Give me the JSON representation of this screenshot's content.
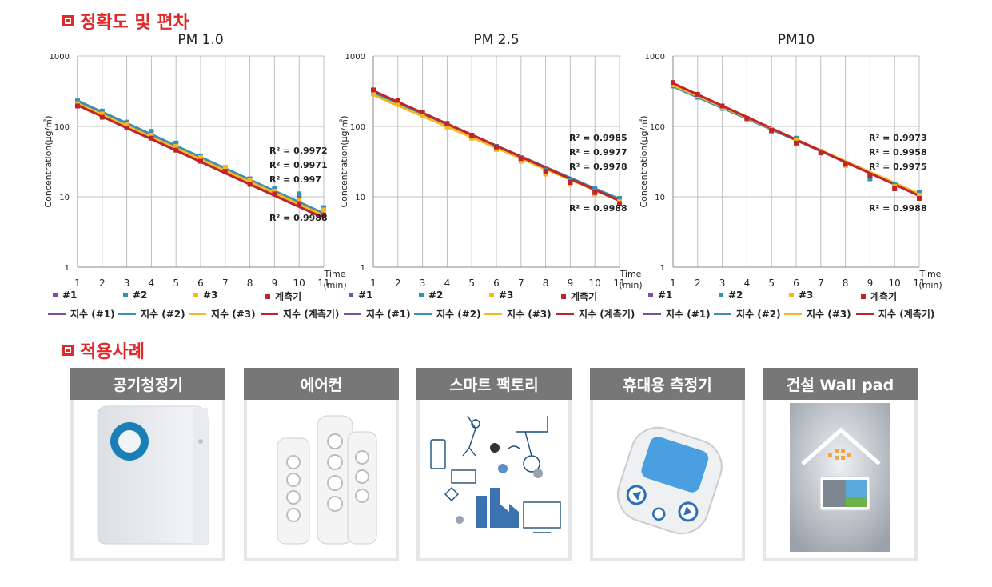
{
  "section1": {
    "title": "정확도 및 편차"
  },
  "section2": {
    "title": "적용사례"
  },
  "legend_labels": {
    "s1": "#1",
    "s2": "#2",
    "s3": "#3",
    "s4": "계측기",
    "t1": "지수 (#1)",
    "t2": "지수 (#2)",
    "t3": "지수 (#3)",
    "t4": "지수 (계측기)"
  },
  "colors": {
    "s1": "#7b4f9d",
    "s2": "#3a8fb7",
    "s3": "#f5b81f",
    "s4": "#c0242b",
    "accent": "#e02a2a",
    "grid": "#bfbfbf"
  },
  "chart_data": [
    {
      "type": "line",
      "title": "PM 1.0",
      "ylabel": "Concentration(µg/㎥)",
      "xlabel": "Time (min)",
      "x": [
        1,
        2,
        3,
        4,
        5,
        6,
        7,
        8,
        9,
        10,
        11
      ],
      "y_scale": "log",
      "ylim": [
        1,
        1000
      ],
      "xlim": [
        1,
        11
      ],
      "yticks": [
        "1",
        "10",
        "100",
        "1000"
      ],
      "series": [
        {
          "name": "#1",
          "values": [
            220,
            160,
            110,
            80,
            55,
            38,
            26,
            18,
            13,
            10,
            6.5
          ],
          "trend": [
            225,
            154,
            106,
            73,
            50,
            34,
            23.5,
            16,
            11,
            7.6,
            5.2
          ]
        },
        {
          "name": "#2",
          "values": [
            230,
            165,
            115,
            85,
            58,
            38,
            26,
            18,
            13,
            11,
            7
          ],
          "trend": [
            232,
            160,
            111,
            77,
            53,
            36.6,
            25.3,
            17.5,
            12.1,
            8.4,
            5.8
          ]
        },
        {
          "name": "#3",
          "values": [
            210,
            150,
            105,
            75,
            52,
            36,
            25,
            17,
            12,
            9,
            6.5
          ],
          "trend": [
            212,
            147,
            102,
            70.5,
            49,
            34,
            23.5,
            16.3,
            11.3,
            7.8,
            5.4
          ]
        },
        {
          "name": "계측기",
          "values": [
            195,
            135,
            95,
            68,
            46,
            32,
            23,
            15,
            11,
            8,
            5.5
          ],
          "trend": [
            200,
            138,
            95,
            66,
            45.5,
            31.4,
            21.7,
            15,
            10.4,
            7.2,
            5
          ]
        }
      ],
      "r2": [
        "R² = 0.9972",
        "R² = 0.9971",
        "R² = 0.997",
        "R² = 0.9988"
      ]
    },
    {
      "type": "line",
      "title": "PM 2.5",
      "ylabel": "Concentration(µg/㎥)",
      "xlabel": "Time (min)",
      "x": [
        1,
        2,
        3,
        4,
        5,
        6,
        7,
        8,
        9,
        10,
        11
      ],
      "y_scale": "log",
      "ylim": [
        1,
        1000
      ],
      "xlim": [
        1,
        11
      ],
      "yticks": [
        "1",
        "10",
        "100",
        "1000"
      ],
      "series": [
        {
          "name": "#1",
          "values": [
            310,
            225,
            155,
            105,
            72,
            50,
            35,
            23,
            16,
            12,
            9
          ],
          "trend": [
            300,
            210,
            148,
            104,
            73,
            51,
            36,
            25,
            17.8,
            12.5,
            8.8
          ]
        },
        {
          "name": "#2",
          "values": [
            315,
            230,
            160,
            110,
            75,
            52,
            36,
            24,
            17,
            13,
            9.5
          ],
          "trend": [
            305,
            215,
            152,
            107,
            75.5,
            53,
            37.5,
            26.4,
            18.6,
            13.1,
            9.3
          ]
        },
        {
          "name": "#3",
          "values": [
            290,
            205,
            140,
            98,
            68,
            47,
            32,
            21,
            15,
            11,
            8.5
          ],
          "trend": [
            280,
            198,
            140,
            99,
            70,
            49.5,
            35,
            24.7,
            17.5,
            12.4,
            8.8
          ]
        },
        {
          "name": "계측기",
          "values": [
            330,
            235,
            160,
            110,
            75,
            51,
            35,
            23,
            16,
            11.5,
            8
          ],
          "trend": [
            320,
            223,
            156,
            109,
            76,
            53,
            37,
            25.8,
            18,
            12.6,
            8.8
          ]
        }
      ],
      "r2": [
        "R² = 0.9985",
        "R² = 0.9977",
        "R² = 0.9978",
        "R² = 0.9988"
      ]
    },
    {
      "type": "line",
      "title": "PM10",
      "ylabel": "Concentration(µg/㎥)",
      "xlabel": "Time (min)",
      "x": [
        1,
        2,
        3,
        4,
        5,
        6,
        7,
        8,
        9,
        10,
        11
      ],
      "y_scale": "log",
      "ylim": [
        1,
        1000
      ],
      "xlim": [
        1,
        11
      ],
      "yticks": [
        "1",
        "10",
        "100",
        "1000"
      ],
      "series": [
        {
          "name": "#1",
          "values": [
            380,
            265,
            185,
            130,
            88,
            62,
            43,
            29,
            20,
            15,
            11
          ],
          "trend": [
            380,
            265,
            186,
            130,
            91,
            64,
            44.6,
            31.2,
            21.9,
            15.3,
            10.7
          ]
        },
        {
          "name": "#2",
          "values": [
            375,
            260,
            180,
            128,
            86,
            68,
            44,
            28,
            18,
            15,
            11.5
          ],
          "trend": [
            370,
            260,
            183,
            129,
            90.5,
            63.6,
            44.7,
            31.4,
            22.1,
            15.5,
            10.9
          ]
        },
        {
          "name": "#3",
          "values": [
            390,
            270,
            185,
            130,
            90,
            63,
            43,
            28,
            20,
            14,
            10.5
          ],
          "trend": [
            385,
            270,
            190,
            133,
            93,
            65,
            45.8,
            32,
            22.5,
            15.8,
            11
          ]
        },
        {
          "name": "계측기",
          "values": [
            420,
            285,
            195,
            130,
            88,
            58,
            42,
            29,
            20,
            13,
            9.5
          ],
          "trend": [
            410,
            284,
            196,
            136,
            94,
            65,
            45,
            31,
            21.6,
            15,
            10.3
          ]
        }
      ],
      "r2": [
        "R² = 0.9973",
        "R² = 0.9958",
        "R² = 0.9975",
        "R² = 0.9988"
      ]
    }
  ],
  "applications": [
    {
      "label": "공기청정기",
      "icon": "air-purifier"
    },
    {
      "label": "에어컨",
      "icon": "air-conditioner"
    },
    {
      "label": "스마트 팩토리",
      "icon": "smart-factory"
    },
    {
      "label": "휴대용 측정기",
      "icon": "portable-meter"
    },
    {
      "label": "건설 Wall pad",
      "icon": "wall-pad"
    }
  ]
}
